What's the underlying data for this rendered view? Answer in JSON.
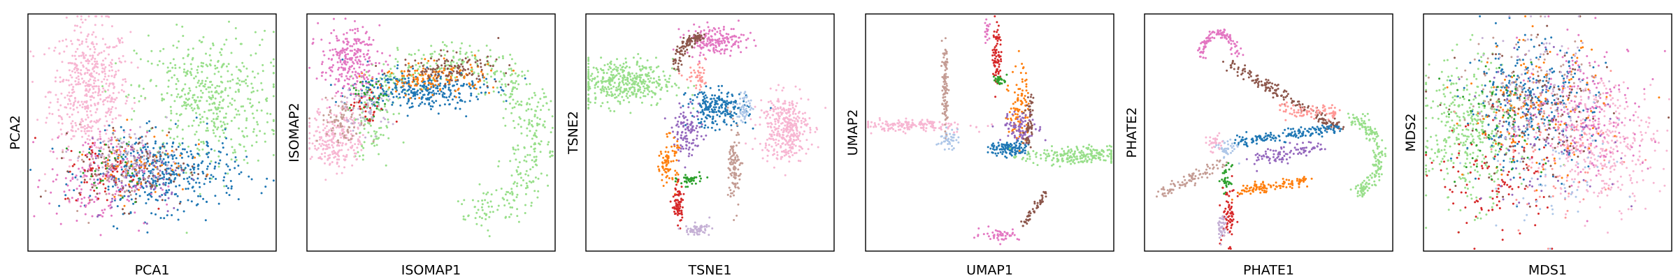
{
  "colors": {
    "c0": "#1f77b4",
    "c1": "#aec7e8",
    "c2": "#ff7f0e",
    "c3": "#2ca02c",
    "c4": "#98df8a",
    "c5": "#d62728",
    "c6": "#ff9896",
    "c7": "#9467bd",
    "c8": "#c5b0d5",
    "c9": "#8c564b",
    "c10": "#c49c94",
    "c11": "#e377c2",
    "c12": "#f7b6d2"
  },
  "chart_data": [
    {
      "type": "scatter",
      "id": "pca",
      "xlabel": "PCA1",
      "ylabel": "PCA2",
      "xlim": [
        0,
        1
      ],
      "ylim": [
        0,
        1
      ],
      "ticks": "none",
      "grid": false,
      "legend": "none",
      "clusters": [
        {
          "color": "c12",
          "center": [
            0.25,
            0.68
          ],
          "spread": [
            0.08,
            0.14
          ],
          "n": 520
        },
        {
          "color": "c4",
          "center": [
            0.72,
            0.64
          ],
          "spread": [
            0.14,
            0.14
          ],
          "n": 480
        },
        {
          "color": "c0",
          "center": [
            0.55,
            0.33
          ],
          "spread": [
            0.15,
            0.08
          ],
          "n": 420
        },
        {
          "color": "c11",
          "center": [
            0.28,
            0.3
          ],
          "spread": [
            0.1,
            0.1
          ],
          "n": 180
        },
        {
          "color": "c9",
          "center": [
            0.45,
            0.35
          ],
          "spread": [
            0.12,
            0.08
          ],
          "n": 100
        },
        {
          "color": "c7",
          "center": [
            0.45,
            0.32
          ],
          "spread": [
            0.1,
            0.08
          ],
          "n": 80
        },
        {
          "color": "c5",
          "center": [
            0.3,
            0.33
          ],
          "spread": [
            0.08,
            0.07
          ],
          "n": 60
        },
        {
          "color": "c2",
          "center": [
            0.45,
            0.38
          ],
          "spread": [
            0.1,
            0.07
          ],
          "n": 60
        },
        {
          "color": "c10",
          "center": [
            0.35,
            0.36
          ],
          "spread": [
            0.1,
            0.08
          ],
          "n": 80
        },
        {
          "color": "c3",
          "center": [
            0.35,
            0.34
          ],
          "spread": [
            0.08,
            0.06
          ],
          "n": 30
        },
        {
          "color": "c8",
          "center": [
            0.4,
            0.4
          ],
          "spread": [
            0.1,
            0.06
          ],
          "n": 60
        }
      ]
    },
    {
      "type": "scatter",
      "id": "isomap",
      "xlabel": "ISOMAP1",
      "ylabel": "ISOMAP2",
      "xlim": [
        0,
        1
      ],
      "ylim": [
        0,
        1
      ],
      "ticks": "none",
      "grid": false,
      "legend": "none",
      "clusters": [
        {
          "color": "c4",
          "shape": "arc",
          "center": [
            0.58,
            0.47
          ],
          "radius": [
            0.34,
            0.34
          ],
          "angle": [
            -1.3,
            3.3
          ],
          "spread": 0.045,
          "n": 550
        },
        {
          "color": "c0",
          "center": [
            0.45,
            0.68
          ],
          "spread": [
            0.13,
            0.04
          ],
          "n": 320
        },
        {
          "color": "c2",
          "center": [
            0.5,
            0.73
          ],
          "spread": [
            0.12,
            0.035
          ],
          "n": 140
        },
        {
          "color": "c9",
          "center": [
            0.58,
            0.77
          ],
          "spread": [
            0.1,
            0.03
          ],
          "n": 120
        },
        {
          "color": "c11",
          "center": [
            0.17,
            0.8
          ],
          "spread": [
            0.06,
            0.07
          ],
          "n": 260
        },
        {
          "color": "c12",
          "center": [
            0.12,
            0.48
          ],
          "spread": [
            0.05,
            0.07
          ],
          "n": 240
        },
        {
          "color": "c10",
          "center": [
            0.15,
            0.55
          ],
          "spread": [
            0.05,
            0.05
          ],
          "n": 80
        },
        {
          "color": "c8",
          "center": [
            0.25,
            0.6
          ],
          "spread": [
            0.05,
            0.05
          ],
          "n": 60
        },
        {
          "color": "c3",
          "center": [
            0.26,
            0.64
          ],
          "spread": [
            0.04,
            0.04
          ],
          "n": 30
        },
        {
          "color": "c5",
          "center": [
            0.24,
            0.6
          ],
          "spread": [
            0.04,
            0.04
          ],
          "n": 30
        }
      ]
    },
    {
      "type": "scatter",
      "id": "tsne",
      "xlabel": "TSNE1",
      "ylabel": "TSNE2",
      "xlim": [
        0,
        1
      ],
      "ylim": [
        0,
        1
      ],
      "ticks": "none",
      "grid": false,
      "legend": "none",
      "clusters": [
        {
          "color": "c4",
          "center": [
            0.15,
            0.71
          ],
          "spread": [
            0.1,
            0.05
          ],
          "n": 420
        },
        {
          "color": "c11",
          "center": [
            0.52,
            0.89
          ],
          "spread": [
            0.06,
            0.03
          ],
          "n": 180
        },
        {
          "color": "c9",
          "shape": "arc",
          "center": [
            0.46,
            0.74
          ],
          "radius": [
            0.1,
            0.16
          ],
          "angle": [
            1.5,
            2.9
          ],
          "spread": 0.012,
          "n": 110
        },
        {
          "color": "c6",
          "center": [
            0.45,
            0.73
          ],
          "spread": [
            0.025,
            0.025
          ],
          "n": 40
        },
        {
          "color": "c0",
          "center": [
            0.53,
            0.6
          ],
          "spread": [
            0.06,
            0.04
          ],
          "n": 220
        },
        {
          "color": "c1",
          "center": [
            0.64,
            0.61
          ],
          "spread": [
            0.015,
            0.035
          ],
          "n": 50
        },
        {
          "color": "c7",
          "center": [
            0.41,
            0.5
          ],
          "spread": [
            0.03,
            0.05
          ],
          "n": 110
        },
        {
          "color": "c12",
          "center": [
            0.8,
            0.52
          ],
          "spread": [
            0.05,
            0.07
          ],
          "n": 360
        },
        {
          "color": "c10",
          "center": [
            0.6,
            0.35
          ],
          "spread": [
            0.012,
            0.08
          ],
          "n": 110
        },
        {
          "color": "c2",
          "center": [
            0.33,
            0.38
          ],
          "spread": [
            0.02,
            0.05
          ],
          "n": 80
        },
        {
          "color": "c3",
          "center": [
            0.42,
            0.3
          ],
          "spread": [
            0.025,
            0.012
          ],
          "n": 40
        },
        {
          "color": "c5",
          "center": [
            0.37,
            0.2
          ],
          "spread": [
            0.012,
            0.045
          ],
          "n": 70
        },
        {
          "color": "c8",
          "center": [
            0.45,
            0.09
          ],
          "spread": [
            0.025,
            0.012
          ],
          "n": 60
        }
      ]
    },
    {
      "type": "scatter",
      "id": "umap",
      "xlabel": "UMAP1",
      "ylabel": "UMAP2",
      "xlim": [
        0,
        1
      ],
      "ylim": [
        0,
        1
      ],
      "ticks": "none",
      "grid": false,
      "legend": "none",
      "clusters": [
        {
          "color": "c12",
          "center": [
            0.18,
            0.53
          ],
          "spread": [
            0.12,
            0.012
          ],
          "n": 160
        },
        {
          "color": "c10",
          "center": [
            0.32,
            0.68
          ],
          "spread": [
            0.006,
            0.09
          ],
          "n": 100
        },
        {
          "color": "c1",
          "center": [
            0.33,
            0.47
          ],
          "spread": [
            0.02,
            0.02
          ],
          "n": 40
        },
        {
          "color": "c5",
          "center": [
            0.53,
            0.83
          ],
          "spread": [
            0.008,
            0.07
          ],
          "n": 80
        },
        {
          "color": "c3",
          "center": [
            0.54,
            0.72
          ],
          "spread": [
            0.015,
            0.01
          ],
          "n": 25
        },
        {
          "color": "c2",
          "center": [
            0.62,
            0.62
          ],
          "spread": [
            0.02,
            0.09
          ],
          "n": 100
        },
        {
          "color": "c7",
          "center": [
            0.63,
            0.52
          ],
          "spread": [
            0.04,
            0.03
          ],
          "n": 90
        },
        {
          "color": "c0",
          "center": [
            0.58,
            0.43
          ],
          "spread": [
            0.04,
            0.015
          ],
          "n": 120
        },
        {
          "color": "c4",
          "center": [
            0.84,
            0.4
          ],
          "spread": [
            0.1,
            0.02
          ],
          "n": 220
        },
        {
          "color": "c9",
          "shape": "line",
          "from": [
            0.65,
            0.45
          ],
          "to": [
            0.67,
            0.66
          ],
          "spread": 0.008,
          "n": 60
        },
        {
          "color": "c9",
          "shape": "line",
          "from": [
            0.73,
            0.25
          ],
          "to": [
            0.63,
            0.1
          ],
          "spread": 0.006,
          "n": 50
        },
        {
          "color": "c11",
          "center": [
            0.54,
            0.07
          ],
          "spread": [
            0.04,
            0.012
          ],
          "n": 50
        },
        {
          "color": "c11",
          "center": [
            0.49,
            0.93
          ],
          "spread": [
            0.005,
            0.03
          ],
          "n": 20
        }
      ]
    },
    {
      "type": "scatter",
      "id": "phate",
      "xlabel": "PHATE1",
      "ylabel": "PHATE2",
      "xlim": [
        0,
        1
      ],
      "ylim": [
        0,
        1
      ],
      "ticks": "none",
      "grid": false,
      "legend": "none",
      "clusters": [
        {
          "color": "c11",
          "shape": "arc",
          "center": [
            0.3,
            0.8
          ],
          "radius": [
            0.07,
            0.12
          ],
          "angle": [
            0.2,
            3.0
          ],
          "spread": 0.01,
          "n": 110
        },
        {
          "color": "c9",
          "shape": "line",
          "from": [
            0.34,
            0.79
          ],
          "to": [
            0.78,
            0.52
          ],
          "spread": 0.012,
          "n": 170
        },
        {
          "color": "c0",
          "shape": "line",
          "from": [
            0.38,
            0.46
          ],
          "to": [
            0.78,
            0.52
          ],
          "spread": 0.012,
          "n": 160
        },
        {
          "color": "c6",
          "shape": "line",
          "from": [
            0.55,
            0.6
          ],
          "to": [
            0.78,
            0.58
          ],
          "spread": 0.015,
          "n": 80
        },
        {
          "color": "c7",
          "shape": "line",
          "from": [
            0.43,
            0.38
          ],
          "to": [
            0.72,
            0.45
          ],
          "spread": 0.015,
          "n": 90
        },
        {
          "color": "c4",
          "shape": "arc",
          "center": [
            0.83,
            0.4
          ],
          "radius": [
            0.11,
            0.16
          ],
          "angle": [
            -1.3,
            1.5
          ],
          "spread": 0.014,
          "n": 180
        },
        {
          "color": "c2",
          "shape": "line",
          "from": [
            0.38,
            0.25
          ],
          "to": [
            0.66,
            0.3
          ],
          "spread": 0.012,
          "n": 110
        },
        {
          "color": "c10",
          "shape": "line",
          "from": [
            0.07,
            0.24
          ],
          "to": [
            0.32,
            0.38
          ],
          "spread": 0.012,
          "n": 90
        },
        {
          "color": "c3",
          "center": [
            0.33,
            0.3
          ],
          "spread": [
            0.01,
            0.03
          ],
          "n": 30
        },
        {
          "color": "c5",
          "center": [
            0.34,
            0.15
          ],
          "spread": [
            0.015,
            0.06
          ],
          "n": 70
        },
        {
          "color": "c8",
          "center": [
            0.31,
            0.1
          ],
          "spread": [
            0.01,
            0.03
          ],
          "n": 40
        },
        {
          "color": "c1",
          "center": [
            0.33,
            0.43
          ],
          "spread": [
            0.02,
            0.02
          ],
          "n": 40
        },
        {
          "color": "c12",
          "center": [
            0.28,
            0.45
          ],
          "spread": [
            0.02,
            0.02
          ],
          "n": 30
        }
      ]
    },
    {
      "type": "scatter",
      "id": "mds",
      "xlabel": "MDS1",
      "ylabel": "MDS2",
      "xlim": [
        0,
        1
      ],
      "ylim": [
        0,
        1
      ],
      "ticks": "none",
      "grid": false,
      "legend": "none",
      "clusters": [
        {
          "color": "c4",
          "center": [
            0.18,
            0.5
          ],
          "spread": [
            0.09,
            0.15
          ],
          "n": 380
        },
        {
          "color": "c12",
          "center": [
            0.72,
            0.46
          ],
          "spread": [
            0.11,
            0.13
          ],
          "n": 380
        },
        {
          "color": "c0",
          "center": [
            0.42,
            0.62
          ],
          "spread": [
            0.13,
            0.13
          ],
          "n": 300
        },
        {
          "color": "c11",
          "center": [
            0.65,
            0.6
          ],
          "spread": [
            0.13,
            0.14
          ],
          "n": 200
        },
        {
          "color": "c5",
          "center": [
            0.3,
            0.3
          ],
          "spread": [
            0.12,
            0.12
          ],
          "n": 110
        },
        {
          "color": "c2",
          "center": [
            0.45,
            0.6
          ],
          "spread": [
            0.14,
            0.14
          ],
          "n": 130
        },
        {
          "color": "c9",
          "center": [
            0.45,
            0.55
          ],
          "spread": [
            0.15,
            0.16
          ],
          "n": 130
        },
        {
          "color": "c7",
          "center": [
            0.48,
            0.5
          ],
          "spread": [
            0.15,
            0.15
          ],
          "n": 100
        },
        {
          "color": "c10",
          "center": [
            0.42,
            0.7
          ],
          "spread": [
            0.13,
            0.12
          ],
          "n": 100
        },
        {
          "color": "c6",
          "center": [
            0.55,
            0.42
          ],
          "spread": [
            0.14,
            0.14
          ],
          "n": 90
        },
        {
          "color": "c8",
          "center": [
            0.5,
            0.7
          ],
          "spread": [
            0.14,
            0.12
          ],
          "n": 70
        },
        {
          "color": "c3",
          "center": [
            0.3,
            0.55
          ],
          "spread": [
            0.1,
            0.14
          ],
          "n": 60
        },
        {
          "color": "c1",
          "center": [
            0.5,
            0.35
          ],
          "spread": [
            0.15,
            0.12
          ],
          "n": 70
        }
      ]
    }
  ]
}
